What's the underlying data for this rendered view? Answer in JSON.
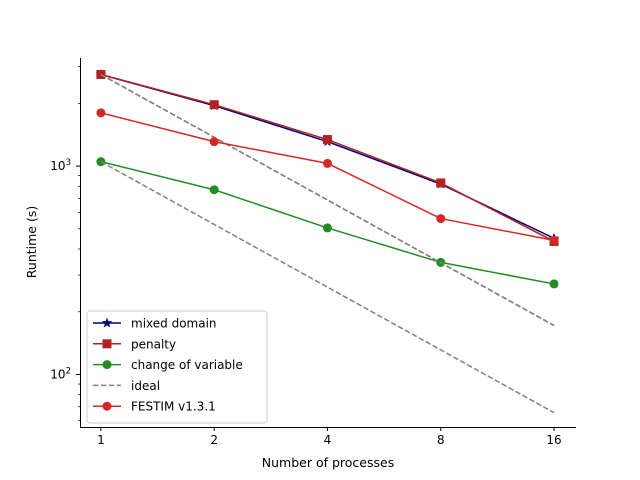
{
  "chart_data": {
    "type": "line",
    "title": "",
    "xlabel": "Number of processes",
    "ylabel": "Runtime (s)",
    "x_scale": "log2",
    "y_scale": "log10",
    "x": [
      1,
      2,
      4,
      8,
      16
    ],
    "x_tick_labels": [
      "1",
      "2",
      "4",
      "8",
      "16"
    ],
    "xlim": [
      0.88,
      18.3
    ],
    "ylim": [
      56,
      3300
    ],
    "y_major_ticks": [
      {
        "value": 100,
        "base": "10",
        "exp": "2"
      },
      {
        "value": 1000,
        "base": "10",
        "exp": "3"
      }
    ],
    "grid": false,
    "legend_position": "lower-left",
    "series": [
      {
        "name": "mixed domain",
        "values": [
          2750,
          1950,
          1310,
          820,
          450
        ],
        "color": "#000080",
        "marker": "star",
        "linestyle": "solid"
      },
      {
        "name": "penalty",
        "values": [
          2750,
          1970,
          1340,
          830,
          435
        ],
        "color": "#b22222",
        "marker": "square",
        "linestyle": "solid"
      },
      {
        "name": "change of variable",
        "values": [
          1050,
          770,
          505,
          345,
          272
        ],
        "color": "#228b22",
        "marker": "circle",
        "linestyle": "solid"
      },
      {
        "name": "ideal",
        "values": [
          2750,
          1375,
          687.5,
          343.75,
          171.9
        ],
        "color": "#808080",
        "marker": "none",
        "linestyle": "dashed",
        "show_in_legend": true
      },
      {
        "name": "ideal",
        "values": [
          1050,
          525,
          262.5,
          131.25,
          65.6
        ],
        "color": "#808080",
        "marker": "none",
        "linestyle": "dashed",
        "show_in_legend": false
      },
      {
        "name": "ideal",
        "values": [
          2750,
          1375,
          687.5,
          343.75,
          171.9
        ],
        "color": "#808080",
        "marker": "none",
        "linestyle": "dashed",
        "show_in_legend": false
      },
      {
        "name": "FESTIM v1.3.1",
        "values": [
          1800,
          1310,
          1030,
          560,
          440
        ],
        "color": "#d62728",
        "marker": "circle",
        "linestyle": "solid"
      }
    ]
  }
}
